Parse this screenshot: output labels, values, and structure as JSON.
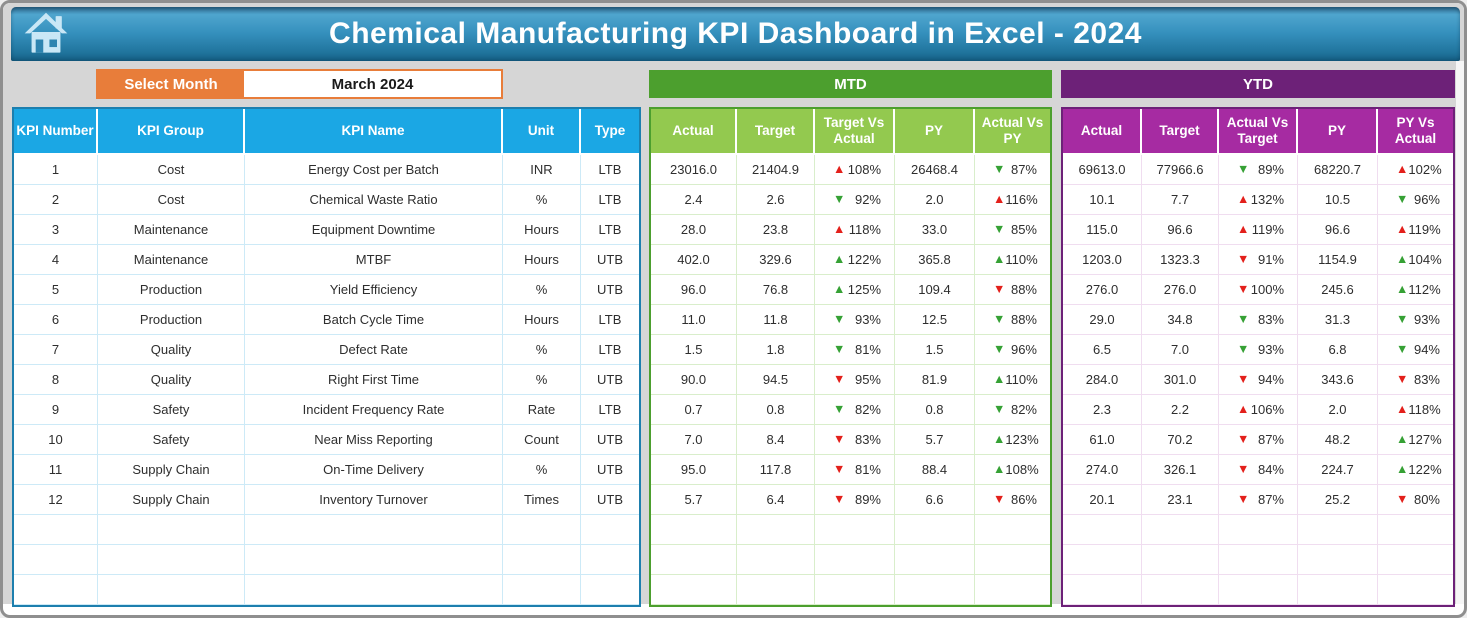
{
  "title": "Chemical Manufacturing KPI Dashboard in Excel - 2024",
  "controls": {
    "select_month_label": "Select Month",
    "selected_month": "March 2024"
  },
  "icons": {
    "home_icon": "house-home-button"
  },
  "colors": {
    "banner_blue": "#3590bd",
    "orange": "#e87d3a",
    "kpi_header_blue": "#1ba7e4",
    "mtd_band_green": "#4c9f2e",
    "mtd_header_green": "#93c94f",
    "ytd_band_purple": "#6d2178",
    "ytd_header_magenta": "#a62ba2",
    "arrow_up_or_bad_red": "#e3201b",
    "arrow_good_green": "#36a135"
  },
  "empty_trailing_rows": 3,
  "kpi_table": {
    "headers": [
      "KPI Number",
      "KPI Group",
      "KPI Name",
      "Unit",
      "Type"
    ],
    "rows": [
      [
        "1",
        "Cost",
        "Energy Cost per Batch",
        "INR",
        "LTB"
      ],
      [
        "2",
        "Cost",
        "Chemical Waste Ratio",
        "%",
        "LTB"
      ],
      [
        "3",
        "Maintenance",
        "Equipment Downtime",
        "Hours",
        "LTB"
      ],
      [
        "4",
        "Maintenance",
        "MTBF",
        "Hours",
        "UTB"
      ],
      [
        "5",
        "Production",
        "Yield Efficiency",
        "%",
        "UTB"
      ],
      [
        "6",
        "Production",
        "Batch Cycle Time",
        "Hours",
        "LTB"
      ],
      [
        "7",
        "Quality",
        "Defect Rate",
        "%",
        "LTB"
      ],
      [
        "8",
        "Quality",
        "Right First Time",
        "%",
        "UTB"
      ],
      [
        "9",
        "Safety",
        "Incident Frequency Rate",
        "Rate",
        "LTB"
      ],
      [
        "10",
        "Safety",
        "Near Miss Reporting",
        "Count",
        "UTB"
      ],
      [
        "11",
        "Supply Chain",
        "On-Time Delivery",
        "%",
        "UTB"
      ],
      [
        "12",
        "Supply Chain",
        "Inventory Turnover",
        "Times",
        "UTB"
      ]
    ]
  },
  "mtd": {
    "band_label": "MTD",
    "headers": [
      "Actual",
      "Target",
      "Target Vs Actual",
      "PY",
      "Actual Vs PY"
    ],
    "rows": [
      [
        "23016.0",
        "21404.9",
        {
          "dir": "up",
          "color": "red",
          "value": "108%"
        },
        "26468.4",
        {
          "dir": "down",
          "color": "green",
          "value": "87%"
        }
      ],
      [
        "2.4",
        "2.6",
        {
          "dir": "down",
          "color": "green",
          "value": "92%"
        },
        "2.0",
        {
          "dir": "up",
          "color": "red",
          "value": "116%"
        }
      ],
      [
        "28.0",
        "23.8",
        {
          "dir": "up",
          "color": "red",
          "value": "118%"
        },
        "33.0",
        {
          "dir": "down",
          "color": "green",
          "value": "85%"
        }
      ],
      [
        "402.0",
        "329.6",
        {
          "dir": "up",
          "color": "green",
          "value": "122%"
        },
        "365.8",
        {
          "dir": "up",
          "color": "green",
          "value": "110%"
        }
      ],
      [
        "96.0",
        "76.8",
        {
          "dir": "up",
          "color": "green",
          "value": "125%"
        },
        "109.4",
        {
          "dir": "down",
          "color": "red",
          "value": "88%"
        }
      ],
      [
        "11.0",
        "11.8",
        {
          "dir": "down",
          "color": "green",
          "value": "93%"
        },
        "12.5",
        {
          "dir": "down",
          "color": "green",
          "value": "88%"
        }
      ],
      [
        "1.5",
        "1.8",
        {
          "dir": "down",
          "color": "green",
          "value": "81%"
        },
        "1.5",
        {
          "dir": "down",
          "color": "green",
          "value": "96%"
        }
      ],
      [
        "90.0",
        "94.5",
        {
          "dir": "down",
          "color": "red",
          "value": "95%"
        },
        "81.9",
        {
          "dir": "up",
          "color": "green",
          "value": "110%"
        }
      ],
      [
        "0.7",
        "0.8",
        {
          "dir": "down",
          "color": "green",
          "value": "82%"
        },
        "0.8",
        {
          "dir": "down",
          "color": "green",
          "value": "82%"
        }
      ],
      [
        "7.0",
        "8.4",
        {
          "dir": "down",
          "color": "red",
          "value": "83%"
        },
        "5.7",
        {
          "dir": "up",
          "color": "green",
          "value": "123%"
        }
      ],
      [
        "95.0",
        "117.8",
        {
          "dir": "down",
          "color": "red",
          "value": "81%"
        },
        "88.4",
        {
          "dir": "up",
          "color": "green",
          "value": "108%"
        }
      ],
      [
        "5.7",
        "6.4",
        {
          "dir": "down",
          "color": "red",
          "value": "89%"
        },
        "6.6",
        {
          "dir": "down",
          "color": "red",
          "value": "86%"
        }
      ]
    ]
  },
  "ytd": {
    "band_label": "YTD",
    "headers": [
      "Actual",
      "Target",
      "Actual Vs Target",
      "PY",
      "PY Vs Actual"
    ],
    "rows": [
      [
        "69613.0",
        "77966.6",
        {
          "dir": "down",
          "color": "green",
          "value": "89%"
        },
        "68220.7",
        {
          "dir": "up",
          "color": "red",
          "value": "102%"
        }
      ],
      [
        "10.1",
        "7.7",
        {
          "dir": "up",
          "color": "red",
          "value": "132%"
        },
        "10.5",
        {
          "dir": "down",
          "color": "green",
          "value": "96%"
        }
      ],
      [
        "115.0",
        "96.6",
        {
          "dir": "up",
          "color": "red",
          "value": "119%"
        },
        "96.6",
        {
          "dir": "up",
          "color": "red",
          "value": "119%"
        }
      ],
      [
        "1203.0",
        "1323.3",
        {
          "dir": "down",
          "color": "red",
          "value": "91%"
        },
        "1154.9",
        {
          "dir": "up",
          "color": "green",
          "value": "104%"
        }
      ],
      [
        "276.0",
        "276.0",
        {
          "dir": "down",
          "color": "red",
          "value": "100%"
        },
        "245.6",
        {
          "dir": "up",
          "color": "green",
          "value": "112%"
        }
      ],
      [
        "29.0",
        "34.8",
        {
          "dir": "down",
          "color": "green",
          "value": "83%"
        },
        "31.3",
        {
          "dir": "down",
          "color": "green",
          "value": "93%"
        }
      ],
      [
        "6.5",
        "7.0",
        {
          "dir": "down",
          "color": "green",
          "value": "93%"
        },
        "6.8",
        {
          "dir": "down",
          "color": "green",
          "value": "94%"
        }
      ],
      [
        "284.0",
        "301.0",
        {
          "dir": "down",
          "color": "red",
          "value": "94%"
        },
        "343.6",
        {
          "dir": "down",
          "color": "red",
          "value": "83%"
        }
      ],
      [
        "2.3",
        "2.2",
        {
          "dir": "up",
          "color": "red",
          "value": "106%"
        },
        "2.0",
        {
          "dir": "up",
          "color": "red",
          "value": "118%"
        }
      ],
      [
        "61.0",
        "70.2",
        {
          "dir": "down",
          "color": "red",
          "value": "87%"
        },
        "48.2",
        {
          "dir": "up",
          "color": "green",
          "value": "127%"
        }
      ],
      [
        "274.0",
        "326.1",
        {
          "dir": "down",
          "color": "red",
          "value": "84%"
        },
        "224.7",
        {
          "dir": "up",
          "color": "green",
          "value": "122%"
        }
      ],
      [
        "20.1",
        "23.1",
        {
          "dir": "down",
          "color": "red",
          "value": "87%"
        },
        "25.2",
        {
          "dir": "down",
          "color": "red",
          "value": "80%"
        }
      ]
    ]
  }
}
